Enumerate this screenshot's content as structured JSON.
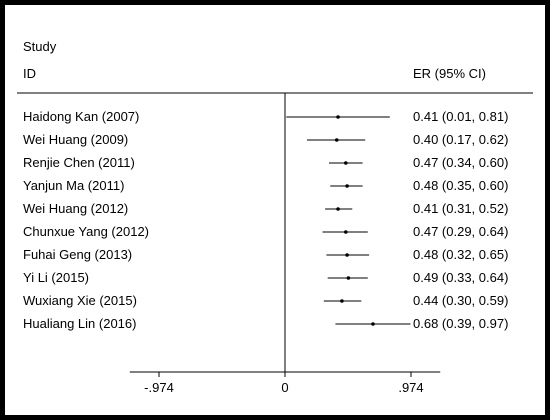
{
  "chart_data": {
    "type": "forest",
    "header": {
      "study_line1": "Study",
      "study_line2": "ID",
      "estimate_label": "ER (95% CI)"
    },
    "studies": [
      {
        "id": "Haidong Kan (2007)",
        "er": 0.41,
        "lower": 0.01,
        "upper": 0.81,
        "label": "0.41 (0.01, 0.81)"
      },
      {
        "id": "Wei Huang (2009)",
        "er": 0.4,
        "lower": 0.17,
        "upper": 0.62,
        "label": "0.40 (0.17, 0.62)"
      },
      {
        "id": "Renjie Chen (2011)",
        "er": 0.47,
        "lower": 0.34,
        "upper": 0.6,
        "label": "0.47 (0.34, 0.60)"
      },
      {
        "id": "Yanjun Ma (2011)",
        "er": 0.48,
        "lower": 0.35,
        "upper": 0.6,
        "label": "0.48 (0.35, 0.60)"
      },
      {
        "id": "Wei Huang (2012)",
        "er": 0.41,
        "lower": 0.31,
        "upper": 0.52,
        "label": "0.41 (0.31, 0.52)"
      },
      {
        "id": "Chunxue Yang (2012)",
        "er": 0.47,
        "lower": 0.29,
        "upper": 0.64,
        "label": "0.47 (0.29, 0.64)"
      },
      {
        "id": "Fuhai Geng (2013)",
        "er": 0.48,
        "lower": 0.32,
        "upper": 0.65,
        "label": "0.48 (0.32, 0.65)"
      },
      {
        "id": "Yi Li (2015)",
        "er": 0.49,
        "lower": 0.33,
        "upper": 0.64,
        "label": "0.49 (0.33, 0.64)"
      },
      {
        "id": "Wuxiang Xie (2015)",
        "er": 0.44,
        "lower": 0.3,
        "upper": 0.59,
        "label": "0.44 (0.30, 0.59)"
      },
      {
        "id": "Hualiang Lin (2016)",
        "er": 0.68,
        "lower": 0.39,
        "upper": 0.97,
        "label": "0.68 (0.39, 0.97)"
      }
    ],
    "x_axis": {
      "range": [
        -1.2,
        1.2
      ],
      "ticks": [
        -0.974,
        0,
        0.974
      ],
      "tick_labels": [
        "-.974",
        "0",
        ".974"
      ]
    },
    "reference_line": 0
  }
}
